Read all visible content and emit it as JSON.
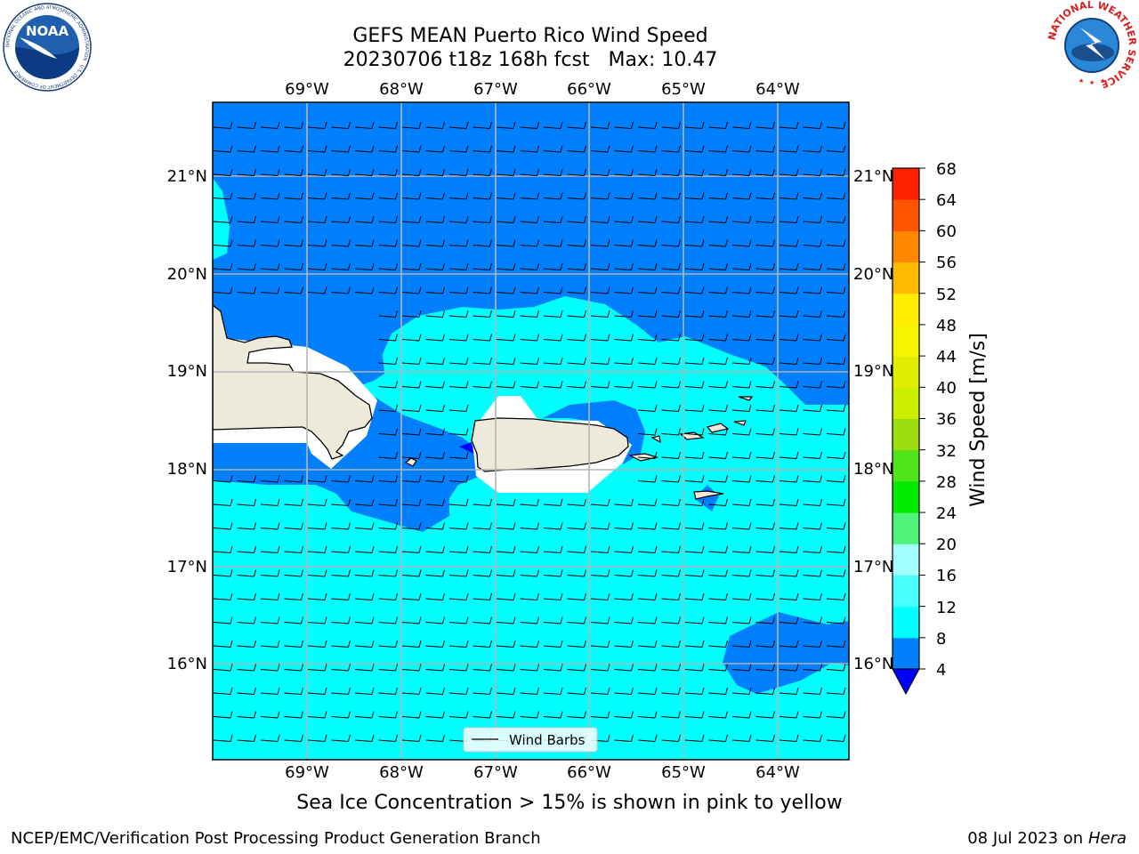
{
  "header": {
    "title_line1": "GEFS MEAN Puerto Rico Wind Speed",
    "title_line2": "20230706 t18z 168h fcst   Max: 10.47"
  },
  "map": {
    "lon_labels": [
      "69°W",
      "68°W",
      "67°W",
      "66°W",
      "65°W",
      "64°W"
    ],
    "lat_labels": [
      "21°N",
      "20°N",
      "19°N",
      "18°N",
      "17°N",
      "16°N"
    ],
    "legend_label": "Wind Barbs",
    "colors": {
      "ocean_low": "#0080ff",
      "ocean_mid": "#00ffff",
      "land": "#eeeadb",
      "ice_mask": "#ffffff"
    }
  },
  "colorbar": {
    "label": "Wind Speed [m/s]",
    "ticks": [
      "4",
      "8",
      "12",
      "16",
      "20",
      "24",
      "28",
      "32",
      "36",
      "40",
      "44",
      "48",
      "52",
      "56",
      "60",
      "64",
      "68"
    ],
    "colors": [
      "#0080ff",
      "#00ffff",
      "#49fffe",
      "#a2fffe",
      "#4ff37a",
      "#00ea00",
      "#52e41b",
      "#9dde12",
      "#ccee00",
      "#dfee00",
      "#f6f600",
      "#ffee00",
      "#ffbb00",
      "#ff8800",
      "#ff5500",
      "#ff2200",
      "#ff0000"
    ],
    "under_color": "#0000ff"
  },
  "subtitle": "Sea Ice Concentration > 15% is shown in pink to yellow",
  "footer": {
    "left": "NCEP/EMC/Verification Post Processing Product Generation Branch",
    "right_prefix": "08 Jul 2023 on",
    "right_host": "Hera"
  },
  "logos": {
    "left_icon": "noaa-logo-icon",
    "left_text": "NOAA",
    "left_ring_text": "NATIONAL OCEANIC AND ATMOSPHERIC ADMINISTRATION · U.S. DEPARTMENT OF COMMERCE",
    "right_icon": "nws-logo-icon",
    "right_ring_text": "NATIONAL WEATHER SERVICE"
  }
}
